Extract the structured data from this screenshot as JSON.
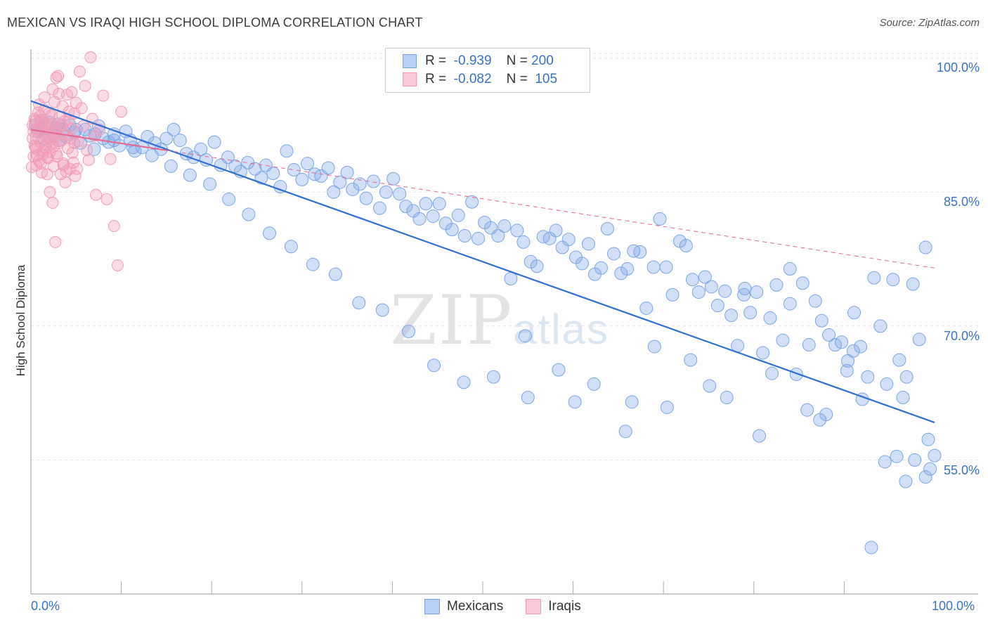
{
  "title": "MEXICAN VS IRAQI HIGH SCHOOL DIPLOMA CORRELATION CHART",
  "source": "Source: ZipAtlas.com",
  "watermark": {
    "zip": "ZIP",
    "atlas": "atlas"
  },
  "colors": {
    "blue": "#7aa6e6",
    "blue_line": "#2f6fd3",
    "pink": "#f29bb6",
    "pink_line": "#e8658f",
    "axis_text": "#3a72c8"
  },
  "legend": {
    "rows": [
      {
        "r_label": "R =",
        "r_value": "-0.939",
        "n_label": "N =",
        "n_value": "200"
      },
      {
        "r_label": "R =",
        "r_value": "-0.082",
        "n_label": "N =",
        "n_value": "105"
      }
    ]
  },
  "bottom_legend": [
    "Mexicans",
    "Iraqis"
  ],
  "chart_data": {
    "type": "scatter",
    "title": "MEXICAN VS IRAQI HIGH SCHOOL DIPLOMA CORRELATION CHART",
    "xlabel": "",
    "ylabel": "High School Diploma",
    "x_tick_labels": [
      "0.0%",
      "100.0%"
    ],
    "y_tick_labels": [
      "100.0%",
      "85.0%",
      "70.0%",
      "55.0%"
    ],
    "y_ticks": [
      100,
      85,
      70,
      55
    ],
    "xlim": [
      0,
      100
    ],
    "ylim": [
      40,
      101
    ],
    "series": [
      {
        "name": "Mexicans",
        "r": -0.939,
        "n": 200,
        "trend": {
          "x": [
            0,
            100
          ],
          "y": [
            95.2,
            59.2
          ]
        },
        "points": [
          [
            0.5,
            92.5
          ],
          [
            0.8,
            91.8
          ],
          [
            1.2,
            92.1
          ],
          [
            1.5,
            91.0
          ],
          [
            2.0,
            92.8
          ],
          [
            2.4,
            91.5
          ],
          [
            2.8,
            92.2
          ],
          [
            3.1,
            90.8
          ],
          [
            3.5,
            92.0
          ],
          [
            3.9,
            91.2
          ],
          [
            4.3,
            92.5
          ],
          [
            4.8,
            91.7
          ],
          [
            5.5,
            90.5
          ],
          [
            6.0,
            92.0
          ],
          [
            6.5,
            91.3
          ],
          [
            7.0,
            89.8
          ],
          [
            7.5,
            92.4
          ],
          [
            8.0,
            91.0
          ],
          [
            8.6,
            90.6
          ],
          [
            9.2,
            91.5
          ],
          [
            9.8,
            90.2
          ],
          [
            10.5,
            91.8
          ],
          [
            11.0,
            90.8
          ],
          [
            11.5,
            89.6
          ],
          [
            12.3,
            90.0
          ],
          [
            12.9,
            91.2
          ],
          [
            13.7,
            90.5
          ],
          [
            14.4,
            89.8
          ],
          [
            15.0,
            91.0
          ],
          [
            15.8,
            92.0
          ],
          [
            16.5,
            90.8
          ],
          [
            17.2,
            89.3
          ],
          [
            18.0,
            88.9
          ],
          [
            18.8,
            89.8
          ],
          [
            19.4,
            88.6
          ],
          [
            20.3,
            90.6
          ],
          [
            21.0,
            88.0
          ],
          [
            21.8,
            88.9
          ],
          [
            22.6,
            87.9
          ],
          [
            23.2,
            87.3
          ],
          [
            24.0,
            88.3
          ],
          [
            24.8,
            87.6
          ],
          [
            25.5,
            86.6
          ],
          [
            26.0,
            88.0
          ],
          [
            26.8,
            87.1
          ],
          [
            27.6,
            85.6
          ],
          [
            28.3,
            89.6
          ],
          [
            29.1,
            87.5
          ],
          [
            30.0,
            86.4
          ],
          [
            30.6,
            88.2
          ],
          [
            31.4,
            87.0
          ],
          [
            32.1,
            86.8
          ],
          [
            32.9,
            87.7
          ],
          [
            33.5,
            85.0
          ],
          [
            34.2,
            86.1
          ],
          [
            35.0,
            87.2
          ],
          [
            35.6,
            85.3
          ],
          [
            36.4,
            85.9
          ],
          [
            37.1,
            84.3
          ],
          [
            37.9,
            86.2
          ],
          [
            38.6,
            83.2
          ],
          [
            39.3,
            85.0
          ],
          [
            40.1,
            86.5
          ],
          [
            40.8,
            84.8
          ],
          [
            41.5,
            83.4
          ],
          [
            42.3,
            82.9
          ],
          [
            43.0,
            82.0
          ],
          [
            43.7,
            83.7
          ],
          [
            44.5,
            82.3
          ],
          [
            45.2,
            83.7
          ],
          [
            45.9,
            81.5
          ],
          [
            46.6,
            80.8
          ],
          [
            47.3,
            82.4
          ],
          [
            48.0,
            80.1
          ],
          [
            48.8,
            83.9
          ],
          [
            49.5,
            79.8
          ],
          [
            50.2,
            81.6
          ],
          [
            50.9,
            81.0
          ],
          [
            51.7,
            80.1
          ],
          [
            52.4,
            81.2
          ],
          [
            53.1,
            75.3
          ],
          [
            53.8,
            80.7
          ],
          [
            54.5,
            79.4
          ],
          [
            55.3,
            77.2
          ],
          [
            56.0,
            76.7
          ],
          [
            56.7,
            80.0
          ],
          [
            57.4,
            79.8
          ],
          [
            58.1,
            80.7
          ],
          [
            58.8,
            78.8
          ],
          [
            59.5,
            79.7
          ],
          [
            60.3,
            77.7
          ],
          [
            61.0,
            77.0
          ],
          [
            61.7,
            79.2
          ],
          [
            62.4,
            75.8
          ],
          [
            63.1,
            76.5
          ],
          [
            63.8,
            80.9
          ],
          [
            64.5,
            78.1
          ],
          [
            65.3,
            75.9
          ],
          [
            66.0,
            76.4
          ],
          [
            66.7,
            78.4
          ],
          [
            67.4,
            78.3
          ],
          [
            68.1,
            72.0
          ],
          [
            68.9,
            76.6
          ],
          [
            69.6,
            82.0
          ],
          [
            70.3,
            76.6
          ],
          [
            71.0,
            73.5
          ],
          [
            71.8,
            79.5
          ],
          [
            72.5,
            79.0
          ],
          [
            73.2,
            75.2
          ],
          [
            73.9,
            73.8
          ],
          [
            74.6,
            75.5
          ],
          [
            75.3,
            74.4
          ],
          [
            76.0,
            72.3
          ],
          [
            76.8,
            73.9
          ],
          [
            77.5,
            71.2
          ],
          [
            78.2,
            67.8
          ],
          [
            78.9,
            73.5
          ],
          [
            79.6,
            71.5
          ],
          [
            80.3,
            73.8
          ],
          [
            81.0,
            67.0
          ],
          [
            81.8,
            70.9
          ],
          [
            82.5,
            74.6
          ],
          [
            83.2,
            68.4
          ],
          [
            84.0,
            76.4
          ],
          [
            84.7,
            64.6
          ],
          [
            85.4,
            74.8
          ],
          [
            86.1,
            67.9
          ],
          [
            86.8,
            72.8
          ],
          [
            87.5,
            70.6
          ],
          [
            88.3,
            69.0
          ],
          [
            89.0,
            67.9
          ],
          [
            89.7,
            68.2
          ],
          [
            90.4,
            66.1
          ],
          [
            91.1,
            71.5
          ],
          [
            91.8,
            67.7
          ],
          [
            92.6,
            64.3
          ],
          [
            93.3,
            75.4
          ],
          [
            94.0,
            70.0
          ],
          [
            94.7,
            63.5
          ],
          [
            95.4,
            75.2
          ],
          [
            96.1,
            66.2
          ],
          [
            96.9,
            64.3
          ],
          [
            97.6,
            74.7
          ],
          [
            98.3,
            68.5
          ],
          [
            99.0,
            78.8
          ],
          [
            55.0,
            62.0
          ],
          [
            60.2,
            61.5
          ],
          [
            65.8,
            58.2
          ],
          [
            70.4,
            60.9
          ],
          [
            75.1,
            63.3
          ],
          [
            80.6,
            57.7
          ],
          [
            85.9,
            60.6
          ],
          [
            90.3,
            65.0
          ],
          [
            95.8,
            55.4
          ],
          [
            99.3,
            57.3
          ],
          [
            82.0,
            64.7
          ],
          [
            88.0,
            60.1
          ],
          [
            92.0,
            61.8
          ],
          [
            96.5,
            62.0
          ],
          [
            100.0,
            55.5
          ],
          [
            79.0,
            74.2
          ],
          [
            84.0,
            72.5
          ],
          [
            87.3,
            59.5
          ],
          [
            91.0,
            67.2
          ],
          [
            94.5,
            54.8
          ],
          [
            97.8,
            55.0
          ],
          [
            99.5,
            54.0
          ],
          [
            77.0,
            62.0
          ],
          [
            73.0,
            66.2
          ],
          [
            69.0,
            67.7
          ],
          [
            66.5,
            61.5
          ],
          [
            62.3,
            63.5
          ],
          [
            58.4,
            65.1
          ],
          [
            54.7,
            68.9
          ],
          [
            51.2,
            64.3
          ],
          [
            47.9,
            63.7
          ],
          [
            44.6,
            65.6
          ],
          [
            41.8,
            69.4
          ],
          [
            38.9,
            71.8
          ],
          [
            36.3,
            72.6
          ],
          [
            33.7,
            75.8
          ],
          [
            31.2,
            76.9
          ],
          [
            28.8,
            78.9
          ],
          [
            26.4,
            80.4
          ],
          [
            24.1,
            82.5
          ],
          [
            21.9,
            84.2
          ],
          [
            19.8,
            85.9
          ],
          [
            17.6,
            86.9
          ],
          [
            15.5,
            87.9
          ],
          [
            13.4,
            89.1
          ],
          [
            11.3,
            90.0
          ],
          [
            9.2,
            90.8
          ],
          [
            7.1,
            91.5
          ],
          [
            5.0,
            92.0
          ],
          [
            3.0,
            92.6
          ],
          [
            1.2,
            93.0
          ],
          [
            93.0,
            45.2
          ],
          [
            96.8,
            52.6
          ],
          [
            99.0,
            53.1
          ]
        ]
      },
      {
        "name": "Iraqis",
        "r": -0.082,
        "n": 105,
        "trend": {
          "x": [
            0,
            100
          ],
          "y": [
            92.0,
            76.5
          ]
        },
        "points": [
          [
            0.2,
            92.5
          ],
          [
            0.3,
            91.8
          ],
          [
            0.4,
            90.2
          ],
          [
            0.5,
            93.0
          ],
          [
            0.6,
            89.8
          ],
          [
            0.7,
            92.1
          ],
          [
            0.8,
            91.0
          ],
          [
            0.9,
            88.5
          ],
          [
            1.0,
            93.5
          ],
          [
            1.1,
            90.6
          ],
          [
            1.2,
            92.8
          ],
          [
            1.3,
            89.2
          ],
          [
            1.4,
            91.5
          ],
          [
            1.5,
            94.2
          ],
          [
            1.6,
            90.0
          ],
          [
            1.7,
            92.3
          ],
          [
            1.8,
            88.9
          ],
          [
            1.9,
            91.7
          ],
          [
            2.0,
            93.8
          ],
          [
            2.1,
            89.5
          ],
          [
            2.2,
            92.6
          ],
          [
            2.3,
            90.4
          ],
          [
            2.4,
            96.5
          ],
          [
            2.5,
            87.9
          ],
          [
            2.6,
            95.1
          ],
          [
            2.7,
            91.2
          ],
          [
            2.8,
            97.8
          ],
          [
            2.9,
            89.0
          ],
          [
            3.0,
            92.0
          ],
          [
            3.1,
            96.0
          ],
          [
            3.2,
            93.4
          ],
          [
            3.3,
            87.0
          ],
          [
            3.4,
            90.8
          ],
          [
            3.5,
            94.6
          ],
          [
            3.6,
            88.2
          ],
          [
            3.7,
            92.9
          ],
          [
            3.8,
            86.1
          ],
          [
            3.9,
            91.4
          ],
          [
            4.0,
            95.9
          ],
          [
            4.1,
            89.9
          ],
          [
            4.2,
            93.1
          ],
          [
            4.3,
            87.6
          ],
          [
            4.4,
            91.0
          ],
          [
            4.5,
            96.2
          ],
          [
            4.6,
            89.4
          ],
          [
            4.7,
            88.3
          ],
          [
            4.8,
            93.8
          ],
          [
            4.9,
            86.8
          ],
          [
            5.0,
            95.0
          ],
          [
            5.2,
            90.7
          ],
          [
            5.4,
            98.5
          ],
          [
            5.6,
            94.4
          ],
          [
            5.8,
            92.4
          ],
          [
            6.0,
            96.9
          ],
          [
            6.2,
            89.7
          ],
          [
            6.4,
            88.6
          ],
          [
            6.6,
            100.1
          ],
          [
            6.8,
            93.2
          ],
          [
            7.0,
            91.3
          ],
          [
            7.2,
            84.7
          ],
          [
            7.6,
            92.0
          ],
          [
            8.0,
            95.8
          ],
          [
            8.4,
            84.2
          ],
          [
            8.8,
            88.7
          ],
          [
            9.2,
            81.2
          ],
          [
            9.6,
            76.8
          ],
          [
            10.0,
            94.0
          ],
          [
            0.3,
            89.0
          ],
          [
            0.6,
            88.0
          ],
          [
            0.9,
            94.8
          ],
          [
            1.2,
            87.2
          ],
          [
            1.5,
            95.6
          ],
          [
            1.8,
            87.0
          ],
          [
            2.1,
            85.0
          ],
          [
            2.4,
            83.8
          ],
          [
            2.7,
            79.4
          ],
          [
            3.0,
            98.0
          ],
          [
            3.3,
            92.6
          ],
          [
            3.6,
            88.0
          ],
          [
            3.9,
            87.3
          ],
          [
            4.2,
            94.0
          ],
          [
            4.5,
            92.1
          ],
          [
            4.8,
            90.5
          ],
          [
            5.1,
            87.6
          ],
          [
            0.1,
            87.8
          ],
          [
            0.2,
            91.0
          ],
          [
            0.4,
            93.2
          ],
          [
            0.5,
            90.0
          ],
          [
            0.7,
            89.1
          ],
          [
            0.8,
            93.9
          ],
          [
            1.0,
            91.9
          ],
          [
            1.1,
            88.2
          ],
          [
            1.3,
            93.0
          ],
          [
            1.4,
            89.6
          ],
          [
            1.6,
            92.7
          ],
          [
            1.7,
            90.3
          ],
          [
            1.9,
            88.8
          ],
          [
            2.0,
            91.1
          ],
          [
            2.2,
            90.9
          ],
          [
            2.3,
            93.6
          ],
          [
            2.5,
            90.1
          ],
          [
            2.6,
            92.2
          ],
          [
            2.8,
            89.3
          ],
          [
            2.9,
            91.6
          ],
          [
            3.1,
            90.5
          ]
        ]
      }
    ]
  }
}
